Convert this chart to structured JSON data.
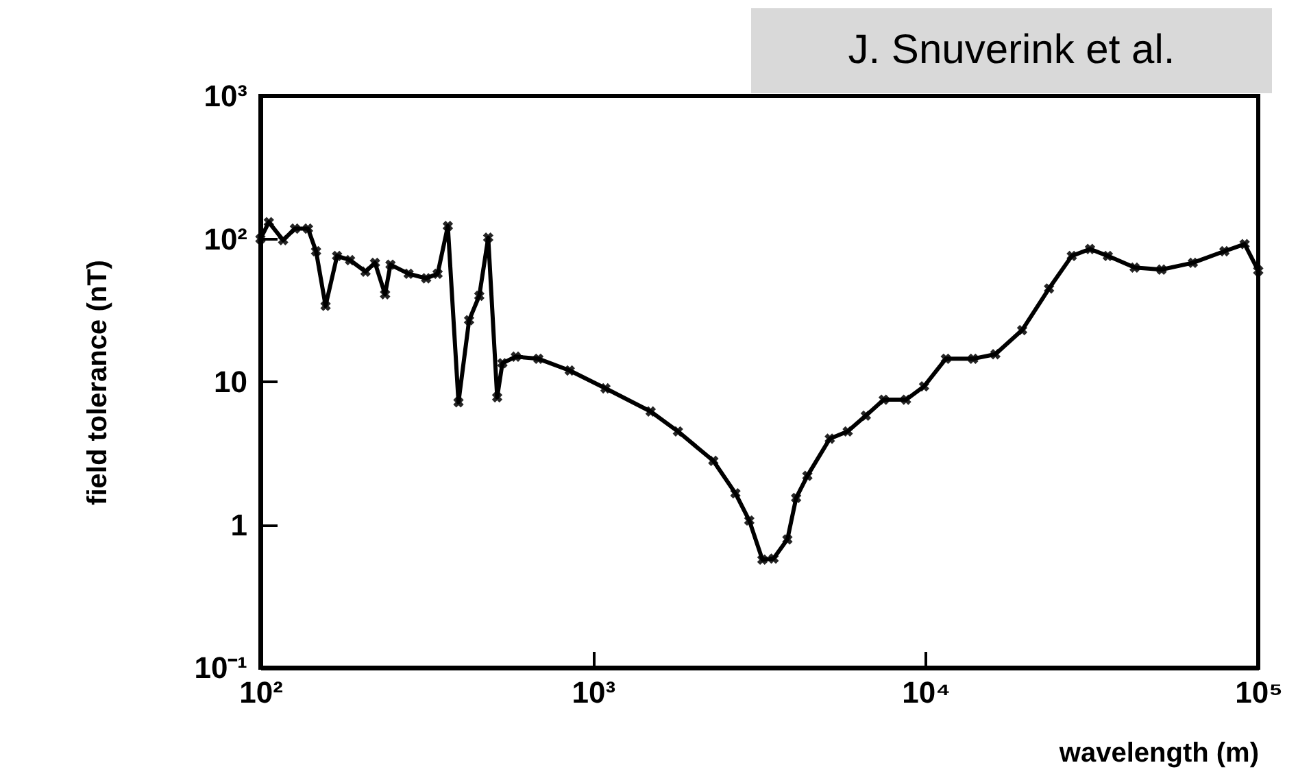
{
  "chart_data": {
    "type": "line",
    "xlabel": "wavelength (m)",
    "ylabel": "field tolerance (nT)",
    "annotations": [
      "J. Snuverink et al."
    ],
    "log": "xy",
    "marker": "cross",
    "line_style": "solid",
    "grid": false,
    "legend": false,
    "xlim": [
      100,
      100000
    ],
    "xticks": [
      {
        "value": 100,
        "label": "10²"
      },
      {
        "value": 1000,
        "label": "10³"
      },
      {
        "value": 10000,
        "label": "10⁴"
      },
      {
        "value": 100000,
        "label": "10⁵"
      }
    ],
    "ylim": [
      0.1,
      1000
    ],
    "yticks": [
      {
        "value": 0.1,
        "label": "10⁻¹"
      },
      1,
      10,
      {
        "value": 100,
        "label": "10²"
      },
      {
        "value": 1000,
        "label": "10³"
      }
    ],
    "series": [
      {
        "color": "#000000",
        "x": [
          100,
          106,
          117,
          127,
          139,
          147,
          157,
          170,
          186,
          207,
          221,
          237,
          246,
          279,
          315,
          341,
          366,
          394,
          424,
          455,
          484,
          515,
          534,
          586,
          685,
          851,
          1090,
          1490,
          1800,
          2300,
          2680,
          2950,
          3230,
          3490,
          3840,
          4080,
          4410,
          5150,
          5830,
          6610,
          7480,
          8730,
          9890,
          11500,
          13900,
          16200,
          19500,
          23500,
          27500,
          31200,
          35300,
          42500,
          51200,
          63600,
          79100,
          91000,
          100000
        ],
        "values": [
          100,
          131,
          98,
          118,
          118,
          82,
          34,
          76,
          71,
          59,
          68,
          41,
          66,
          57,
          53,
          57,
          123,
          7.2,
          27,
          40,
          102,
          7.8,
          13.5,
          15,
          14.5,
          12,
          9,
          6.2,
          4.5,
          2.8,
          1.66,
          1.07,
          0.57,
          0.58,
          0.79,
          1.54,
          2.2,
          4,
          4.5,
          5.8,
          7.5,
          7.5,
          9.3,
          14.5,
          14.5,
          15.6,
          23,
          45,
          76,
          85,
          76,
          63,
          61,
          68,
          82,
          92,
          60
        ]
      }
    ]
  }
}
